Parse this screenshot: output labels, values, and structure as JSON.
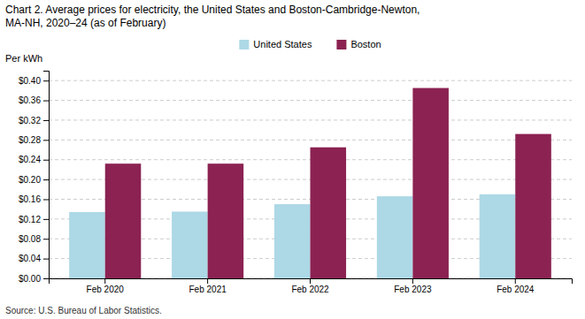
{
  "chart_data": {
    "type": "bar",
    "title": "Chart 2. Average prices for electricity, the United States and Boston-Cambridge-Newton,\nMA-NH, 2020–24 (as of February)",
    "ylabel": "Per kWh",
    "source": "Source: U.S. Bureau of Labor Statistics.",
    "categories": [
      "Feb 2020",
      "Feb 2021",
      "Feb 2022",
      "Feb 2023",
      "Feb 2024"
    ],
    "series": [
      {
        "name": "United States",
        "color": "#ADD8E6",
        "values": [
          0.134,
          0.135,
          0.15,
          0.166,
          0.17
        ]
      },
      {
        "name": "Boston",
        "color": "#8B2252",
        "values": [
          0.232,
          0.232,
          0.265,
          0.385,
          0.292
        ]
      }
    ],
    "ylim": [
      0,
      0.42
    ],
    "yticks": [
      {
        "value": 0.0,
        "label": "$0.00"
      },
      {
        "value": 0.04,
        "label": "$0.04"
      },
      {
        "value": 0.08,
        "label": "$0.08"
      },
      {
        "value": 0.12,
        "label": "$0.12"
      },
      {
        "value": 0.16,
        "label": "$0.16"
      },
      {
        "value": 0.2,
        "label": "$0.20"
      },
      {
        "value": 0.24,
        "label": "$0.24"
      },
      {
        "value": 0.28,
        "label": "$0.28"
      },
      {
        "value": 0.32,
        "label": "$0.32"
      },
      {
        "value": 0.36,
        "label": "$0.36"
      },
      {
        "value": 0.4,
        "label": "$0.40"
      }
    ],
    "grid": true,
    "legend": "top"
  }
}
